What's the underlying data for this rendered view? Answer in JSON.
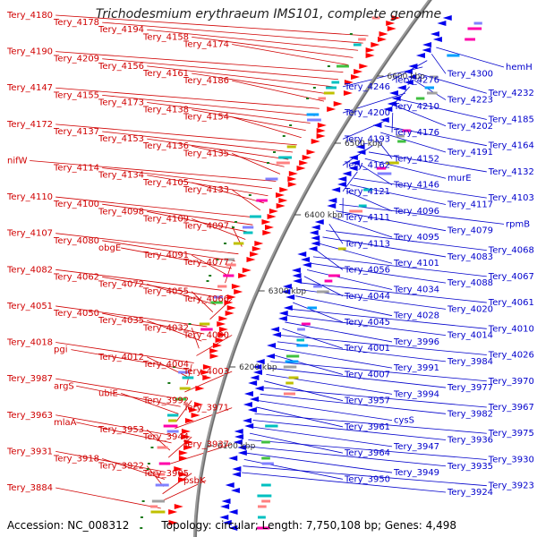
{
  "title": "Trichodesmium erythraeum IMS101, complete genome",
  "accession": "Accession: NC_008312",
  "summary": "Topology: circular; Length: 7,750,108 bp; Genes: 4,498",
  "colors": {
    "forward": "#ff0000",
    "reverse": "#0000ee",
    "backbone": "#999999",
    "label_left": "#d00000",
    "label_right": "#0000cc",
    "tick": "#1a7a1a"
  },
  "scale_labels": [
    "6600 kbp",
    "6500 kbp",
    "6400 kbp",
    "6300 kbp",
    "6200 kbp",
    "6100 kbp"
  ],
  "left_labels": [
    "Tery_4180",
    "Tery_4178",
    "Tery_4194",
    "Tery_4158",
    "Tery_4174",
    "Tery_4190",
    "Tery_4209",
    "Tery_4156",
    "Tery_4161",
    "Tery_4186",
    "Tery_4147",
    "Tery_4155",
    "Tery_4173",
    "Tery_4138",
    "Tery_4154",
    "Tery_4172",
    "Tery_4137",
    "Tery_4153",
    "Tery_4136",
    "Tery_4135",
    "nifW",
    "Tery_4114",
    "Tery_4134",
    "Tery_4105",
    "Tery_4133",
    "Tery_4110",
    "Tery_4100",
    "Tery_4098",
    "Tery_4109",
    "Tery_4097",
    "Tery_4107",
    "Tery_4080",
    "obgE",
    "Tery_4091",
    "Tery_4077",
    "Tery_4082",
    "Tery_4062",
    "Tery_4072",
    "Tery_4055",
    "Tery_4066",
    "Tery_4051",
    "Tery_4050",
    "Tery_4035",
    "Tery_4032",
    "Tery_4030",
    "Tery_4018",
    "pgi",
    "Tery_4012",
    "Tery_4004",
    "Tery_4003",
    "Tery_3987",
    "argS",
    "ubiE",
    "Tery_3992",
    "Tery_3971",
    "Tery_3963",
    "mlaA",
    "Tery_3953",
    "Tery_3944",
    "Tery_3937",
    "Tery_3931",
    "Tery_3918",
    "Tery_3922",
    "Tery_3905",
    "psbK",
    "Tery_3884"
  ],
  "right_labels": [
    "hemH",
    "Tery_4300",
    "Tery_4276",
    "Tery_4246",
    "Tery_4232",
    "Tery_4223",
    "Tery_4210",
    "Tery_4200",
    "Tery_4185",
    "Tery_4202",
    "Tery_4176",
    "Tery_4193",
    "Tery_4164",
    "Tery_4191",
    "Tery_4152",
    "Tery_4162",
    "Tery_4132",
    "murE",
    "Tery_4146",
    "Tery_4121",
    "Tery_4103",
    "Tery_4117",
    "Tery_4096",
    "Tery_4111",
    "rpmB",
    "Tery_4079",
    "Tery_4095",
    "Tery_4113",
    "Tery_4068",
    "Tery_4083",
    "Tery_4101",
    "Tery_4056",
    "Tery_4067",
    "Tery_4088",
    "Tery_4034",
    "Tery_4044",
    "Tery_4061",
    "Tery_4020",
    "Tery_4028",
    "Tery_4045",
    "Tery_4010",
    "Tery_4014",
    "Tery_3996",
    "Tery_4001",
    "Tery_4026",
    "Tery_3984",
    "Tery_3991",
    "Tery_4007",
    "Tery_3970",
    "Tery_3977",
    "Tery_3994",
    "Tery_3957",
    "Tery_3967",
    "Tery_3982",
    "cysS",
    "Tery_3961",
    "Tery_3975",
    "Tery_3936",
    "Tery_3947",
    "Tery_3964",
    "Tery_3930",
    "Tery_3935",
    "Tery_3949",
    "Tery_3950",
    "Tery_3923",
    "Tery_3924"
  ]
}
